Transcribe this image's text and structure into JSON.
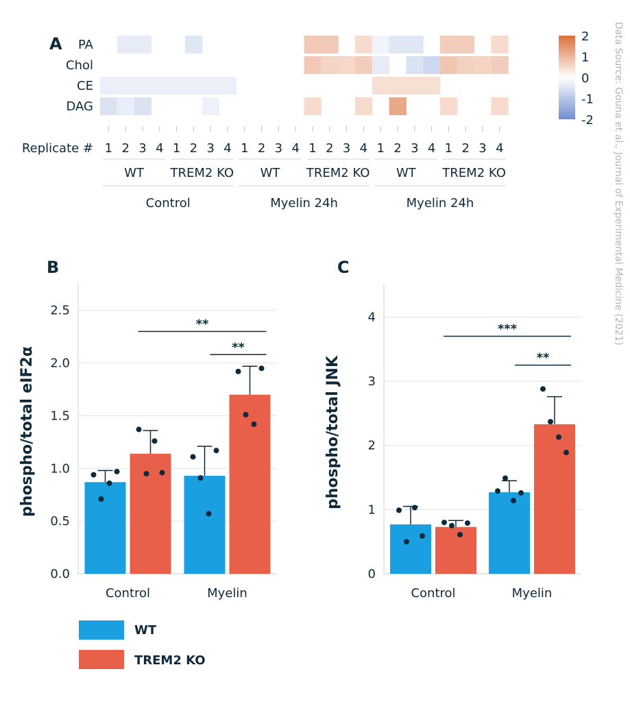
{
  "source": "Data Source: Gouna et al., Journal of Experimental Medicine (2021)",
  "colors": {
    "wt": "#1a9fe0",
    "ko": "#e8604a",
    "text": "#0e2a3a",
    "heat_low": "#6f8ed0",
    "heat_mid": "#ffffff",
    "heat_high": "#d9703c"
  },
  "legend": {
    "wt": "WT",
    "ko": "TREM2 KO"
  },
  "heatmap": {
    "letter": "A",
    "rows": [
      "PA",
      "Chol",
      "CE",
      "DAG"
    ],
    "replicate_label": "Replicate #",
    "replicates": [
      "1",
      "2",
      "3",
      "4"
    ],
    "genotypes": [
      "WT",
      "TREM2 KO"
    ],
    "groups": [
      "Control",
      "Myelin 24h",
      "Myelin 24h"
    ],
    "colorbar": {
      "min": -2,
      "max": 2,
      "ticks": [
        "2",
        "1",
        "0",
        "-1",
        "-2"
      ]
    },
    "values": [
      [
        0,
        -0.35,
        -0.35,
        0,
        0,
        -0.45,
        0,
        0,
        0,
        0,
        0,
        0,
        0.75,
        0.75,
        0,
        0.5,
        -0.2,
        -0.45,
        -0.45,
        0,
        0.7,
        0.7,
        0,
        0.5
      ],
      [
        0,
        0,
        0,
        0,
        0,
        0,
        0,
        0,
        0,
        0,
        0,
        0,
        0.75,
        0.6,
        0.55,
        0.7,
        -0.35,
        0,
        -0.5,
        -0.7,
        0.8,
        0.65,
        0.6,
        0.7
      ],
      [
        -0.28,
        -0.28,
        -0.28,
        -0.28,
        -0.28,
        -0.28,
        -0.28,
        -0.28,
        0,
        0,
        0,
        0,
        0,
        0,
        0,
        0,
        0.45,
        0.45,
        0.45,
        0.45,
        0,
        0,
        0,
        0
      ],
      [
        -0.5,
        -0.3,
        -0.5,
        0,
        0,
        0,
        -0.25,
        0,
        0,
        0,
        0,
        0,
        0.5,
        0,
        0,
        0.5,
        0,
        1.2,
        0,
        0,
        0.5,
        0,
        0,
        0.5
      ]
    ]
  },
  "chart_data": [
    {
      "type": "bar",
      "panel": "B",
      "ylabel": "phospho/total eIF2α",
      "categories": [
        "Control",
        "Myelin"
      ],
      "ylim": [
        0,
        2.7
      ],
      "yticks": [
        "0.0",
        "0.5",
        "1.0",
        "1.5",
        "2.0",
        "2.5"
      ],
      "ytick_values": [
        0,
        0.5,
        1.0,
        1.5,
        2.0,
        2.5
      ],
      "series": [
        {
          "name": "WT",
          "values": [
            0.87,
            0.93
          ],
          "errors": [
            0.11,
            0.28
          ],
          "points": [
            [
              0.94,
              0.71,
              0.86,
              0.97
            ],
            [
              1.11,
              0.91,
              0.57,
              1.17
            ]
          ]
        },
        {
          "name": "TREM2 KO",
          "values": [
            1.14,
            1.7
          ],
          "errors": [
            0.22,
            0.27
          ],
          "points": [
            [
              1.37,
              0.95,
              1.26,
              0.96
            ],
            [
              1.92,
              1.51,
              1.42,
              1.95
            ]
          ]
        }
      ],
      "significance": [
        {
          "label": "**",
          "from": [
            0,
            1
          ],
          "to": [
            1,
            1
          ],
          "y": 2.3
        },
        {
          "label": "**",
          "from": [
            1,
            0
          ],
          "to": [
            1,
            1
          ],
          "y": 2.08
        }
      ]
    },
    {
      "type": "bar",
      "panel": "C",
      "ylabel": "phospho/total JNK",
      "categories": [
        "Control",
        "Myelin"
      ],
      "ylim": [
        0,
        4.4
      ],
      "yticks": [
        "0",
        "1",
        "2",
        "3",
        "4"
      ],
      "ytick_values": [
        0,
        1,
        2,
        3,
        4
      ],
      "series": [
        {
          "name": "WT",
          "values": [
            0.77,
            1.27
          ],
          "errors": [
            0.28,
            0.18
          ],
          "points": [
            [
              0.99,
              0.5,
              1.03,
              0.59
            ],
            [
              1.29,
              1.49,
              1.14,
              1.26
            ]
          ]
        },
        {
          "name": "TREM2 KO",
          "values": [
            0.73,
            2.33
          ],
          "errors": [
            0.1,
            0.43
          ],
          "points": [
            [
              0.8,
              0.75,
              0.61,
              0.79
            ],
            [
              2.88,
              2.37,
              2.13,
              1.89
            ]
          ]
        }
      ],
      "significance": [
        {
          "label": "***",
          "from": [
            0,
            1
          ],
          "to": [
            1,
            1
          ],
          "y": 3.7
        },
        {
          "label": "**",
          "from": [
            1,
            0
          ],
          "to": [
            1,
            1
          ],
          "y": 3.25
        }
      ]
    }
  ]
}
